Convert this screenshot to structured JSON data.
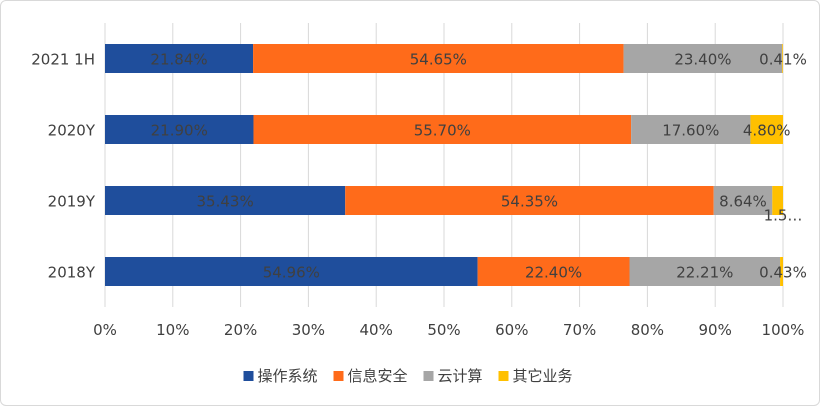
{
  "chart_data": {
    "type": "bar",
    "orientation": "horizontal",
    "stacked": true,
    "title": "",
    "xlabel": "",
    "ylabel": "",
    "xlim": [
      0,
      100
    ],
    "x_tick_labels": [
      "0%",
      "10%",
      "20%",
      "30%",
      "40%",
      "50%",
      "60%",
      "70%",
      "80%",
      "90%",
      "100%"
    ],
    "grid": true,
    "legend_position": "bottom",
    "categories": [
      "2021 1H",
      "2020Y",
      "2019Y",
      "2018Y"
    ],
    "series": [
      {
        "name": "操作系统",
        "color": "#1f4e9c",
        "values": [
          21.84,
          21.9,
          35.43,
          54.96
        ],
        "labels": [
          "21.84%",
          "21.90%",
          "35.43%",
          "54.96%"
        ]
      },
      {
        "name": "信息安全",
        "color": "#ff6b1a",
        "values": [
          54.65,
          55.7,
          54.35,
          22.4
        ],
        "labels": [
          "54.65%",
          "55.70%",
          "54.35%",
          "22.40%"
        ]
      },
      {
        "name": "云计算",
        "color": "#a6a6a6",
        "values": [
          23.4,
          17.6,
          8.64,
          22.21
        ],
        "labels": [
          "23.40%",
          "17.60%",
          "8.64%",
          "22.21%"
        ]
      },
      {
        "name": "其它业务",
        "color": "#ffc000",
        "values": [
          0.41,
          4.8,
          1.58,
          0.43
        ],
        "labels": [
          "0.41%",
          "4.80%",
          "1.5…",
          "0.43%"
        ]
      }
    ]
  }
}
